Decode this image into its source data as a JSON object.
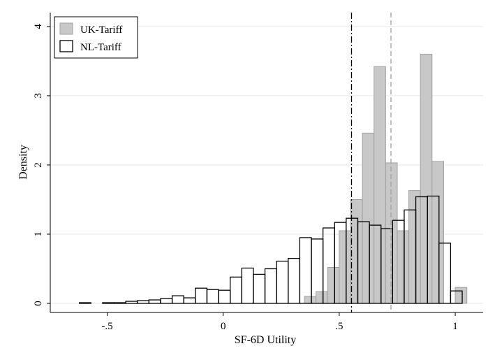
{
  "chart_data": {
    "type": "bar",
    "title": "",
    "xlabel": "SF-6D Utility",
    "ylabel": "Density",
    "xlim": [
      -0.64,
      1.06
    ],
    "ylim": [
      0,
      4.1
    ],
    "x_ticks": [
      -0.5,
      0,
      0.5,
      1
    ],
    "x_tick_labels": [
      "-.5",
      "0",
      ".5",
      "1"
    ],
    "y_ticks": [
      0,
      1,
      2,
      3,
      4
    ],
    "y_tick_labels": [
      "0",
      "1",
      "2",
      "3",
      "4"
    ],
    "grid": true,
    "legend_position": "top-left",
    "colors": {
      "uk_fill": "#c8c8c8",
      "uk_stroke": "#a0a0a0",
      "nl_fill": "#ffffff",
      "nl_stroke": "#000000",
      "grid": "#e6e6e6"
    },
    "series": [
      {
        "name": "UK-Tariff",
        "style": "gray",
        "bin_width": 0.05,
        "bin_starts": [
          0.35,
          0.4,
          0.45,
          0.5,
          0.55,
          0.6,
          0.65,
          0.7,
          0.75,
          0.8,
          0.85,
          0.9,
          0.95,
          1.0
        ],
        "values": [
          0.1,
          0.17,
          0.52,
          1.05,
          1.5,
          2.46,
          3.42,
          2.03,
          1.05,
          1.63,
          3.6,
          2.05,
          0.0,
          0.23
        ]
      },
      {
        "name": "NL-Tariff",
        "style": "outline",
        "bin_width": 0.05,
        "bin_starts": [
          -0.62,
          -0.57,
          -0.52,
          -0.47,
          -0.42,
          -0.37,
          -0.32,
          -0.27,
          -0.22,
          -0.17,
          -0.12,
          -0.07,
          -0.02,
          0.03,
          0.08,
          0.13,
          0.18,
          0.23,
          0.28,
          0.33,
          0.38,
          0.43,
          0.48,
          0.53,
          0.58,
          0.63,
          0.68,
          0.73,
          0.78,
          0.83,
          0.88,
          0.93,
          0.98
        ],
        "values": [
          0.01,
          0.0,
          0.01,
          0.01,
          0.03,
          0.04,
          0.05,
          0.07,
          0.11,
          0.08,
          0.22,
          0.2,
          0.19,
          0.38,
          0.51,
          0.42,
          0.5,
          0.61,
          0.65,
          0.95,
          0.93,
          1.09,
          1.17,
          1.23,
          1.18,
          1.13,
          1.08,
          1.2,
          1.35,
          1.54,
          1.55,
          0.87,
          0.18
        ]
      }
    ],
    "reference_lines": [
      {
        "series": "NL-Tariff",
        "x": 0.553,
        "style": "dash-dot",
        "color": "#000000"
      },
      {
        "series": "UK-Tariff",
        "x": 0.723,
        "style": "dashed",
        "color": "#a0a0a0"
      }
    ]
  }
}
